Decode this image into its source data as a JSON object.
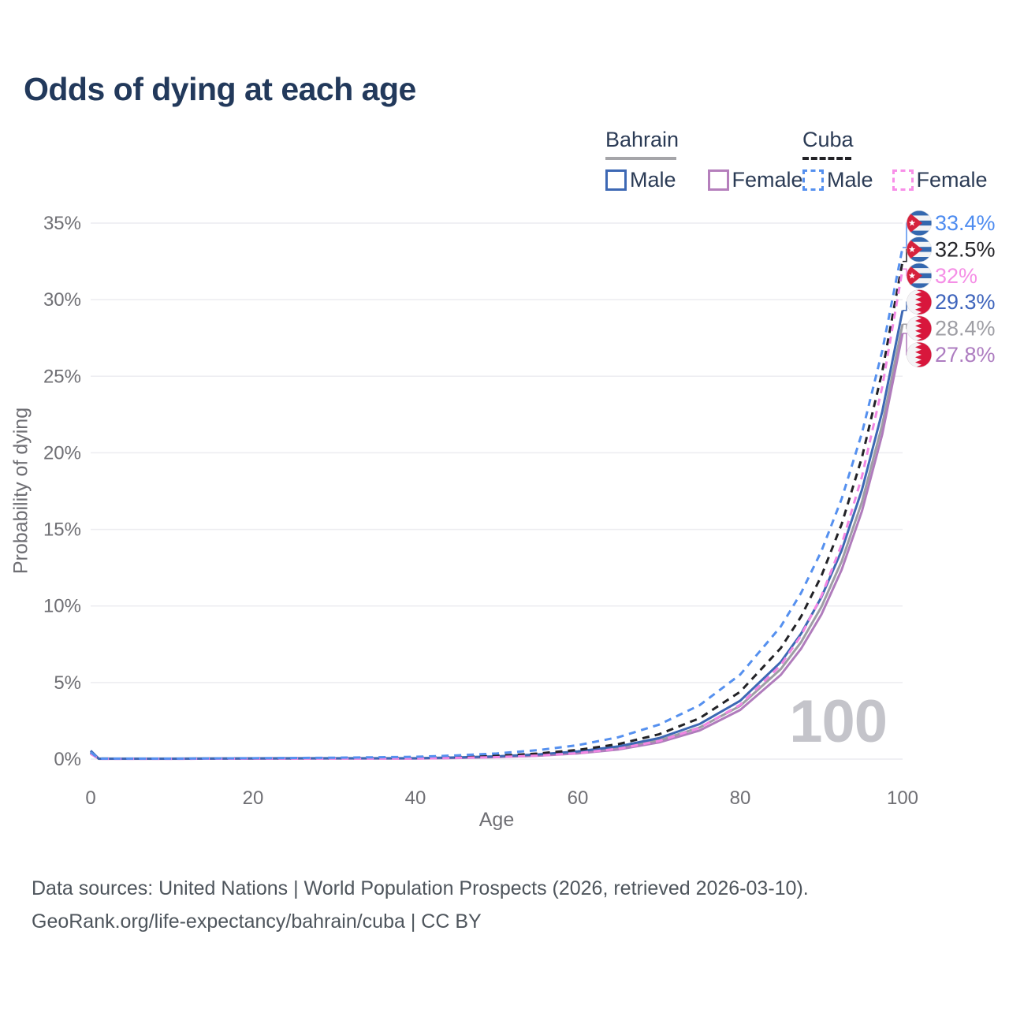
{
  "page": {
    "title": "Odds of dying at each age",
    "background": "#ffffff",
    "title_color": "#22395b"
  },
  "legend": {
    "bahrain": {
      "title": "Bahrain",
      "underline_color": "#a5a5a9",
      "underline_style": "solid",
      "male_label": "Male",
      "male_color": "#3d68b4",
      "female_label": "Female",
      "female_color": "#b57fbc"
    },
    "cuba": {
      "title": "Cuba",
      "underline_color": "#222226",
      "underline_style": "dashed",
      "male_label": "Male",
      "male_color": "#5590ef",
      "female_label": "Female",
      "female_color": "#f88fe8"
    }
  },
  "chart_data": {
    "type": "line",
    "title": "Odds of dying at each age",
    "xlabel": "Age",
    "ylabel": "Probability of dying",
    "xlim": [
      0,
      100
    ],
    "ylim": [
      0,
      35
    ],
    "grid": "horizontal",
    "grid_color": "#ececf0",
    "tick_color": "#6f6f74",
    "watermark": "100",
    "x_ticks": [
      "0",
      "20",
      "40",
      "60",
      "80",
      "100"
    ],
    "x_tick_values": [
      0,
      20,
      40,
      60,
      80,
      100
    ],
    "y_ticks": [
      "0%",
      "5%",
      "10%",
      "15%",
      "20%",
      "25%",
      "30%",
      "35%"
    ],
    "y_tick_values": [
      0,
      5,
      10,
      15,
      20,
      25,
      30,
      35
    ],
    "ages": [
      0,
      1,
      10,
      20,
      30,
      40,
      45,
      50,
      55,
      60,
      65,
      70,
      75,
      80,
      85,
      87.5,
      90,
      92.5,
      95,
      97.5,
      100
    ],
    "series": [
      {
        "id": "bahrain-all",
        "name": "Bahrain",
        "country": "Bahrain",
        "sex": "Both",
        "color": "#9e9ea4",
        "label_color": "#9e9ea4",
        "dashed": false,
        "flag": "bahrain",
        "end_label": "28.4%",
        "values": [
          0.5,
          0.025,
          0.025,
          0.04,
          0.05,
          0.05,
          0.09,
          0.15,
          0.25,
          0.43,
          0.72,
          1.22,
          2.06,
          3.48,
          5.88,
          7.64,
          9.94,
          12.92,
          16.8,
          21.84,
          28.4
        ]
      },
      {
        "id": "bahrain-female",
        "name": "Bahrain Female",
        "country": "Bahrain",
        "sex": "Female",
        "color": "#b07cbc",
        "label_color": "#ad7cc0",
        "dashed": false,
        "flag": "bahrain",
        "end_label": "27.8%",
        "values": [
          0.45,
          0.02,
          0.02,
          0.03,
          0.04,
          0.04,
          0.07,
          0.13,
          0.22,
          0.37,
          0.63,
          1.09,
          1.87,
          3.21,
          5.5,
          7.21,
          9.44,
          12.37,
          16.2,
          21.22,
          27.8
        ]
      },
      {
        "id": "bahrain-male",
        "name": "Bahrain Male",
        "country": "Bahrain",
        "sex": "Male",
        "color": "#3d68b4",
        "label_color": "#3e64bc",
        "dashed": false,
        "flag": "bahrain",
        "end_label": "29.3%",
        "values": [
          0.55,
          0.03,
          0.03,
          0.05,
          0.06,
          0.06,
          0.11,
          0.18,
          0.3,
          0.5,
          0.83,
          1.37,
          2.29,
          3.81,
          6.34,
          8.19,
          10.57,
          13.63,
          17.59,
          22.7,
          29.3
        ]
      },
      {
        "id": "cuba-all",
        "name": "Cuba",
        "country": "Cuba",
        "sex": "Both",
        "color": "#222226",
        "label_color": "#222226",
        "dashed": true,
        "flag": "cuba",
        "end_label": "32.5%",
        "values": [
          0.4,
          0.03,
          0.025,
          0.04,
          0.06,
          0.08,
          0.13,
          0.22,
          0.36,
          0.6,
          0.98,
          1.62,
          2.67,
          4.4,
          7.25,
          9.31,
          11.96,
          15.35,
          19.71,
          25.31,
          32.5
        ]
      },
      {
        "id": "cuba-female",
        "name": "Cuba Female",
        "country": "Cuba",
        "sex": "Female",
        "color": "#f287e3",
        "label_color": "#f58fe6",
        "dashed": true,
        "flag": "cuba",
        "end_label": "32%",
        "values": [
          0.35,
          0.02,
          0.02,
          0.03,
          0.04,
          0.04,
          0.08,
          0.13,
          0.23,
          0.39,
          0.68,
          1.18,
          2.04,
          3.55,
          6.14,
          8.07,
          10.65,
          14.02,
          18.46,
          24.31,
          32.0
        ]
      },
      {
        "id": "cuba-male",
        "name": "Cuba Male",
        "country": "Cuba",
        "sex": "Male",
        "color": "#5590ef",
        "label_color": "#4e8cf0",
        "dashed": true,
        "flag": "cuba",
        "end_label": "33.4%",
        "values": [
          0.45,
          0.03,
          0.03,
          0.06,
          0.09,
          0.15,
          0.24,
          0.37,
          0.58,
          0.91,
          1.43,
          2.25,
          3.52,
          5.52,
          8.66,
          10.85,
          13.58,
          17.0,
          21.3,
          26.67,
          33.4
        ]
      }
    ],
    "flag_colors": {
      "cuba_blue": "#3468af",
      "cuba_white": "#f2f3f5",
      "cuba_red": "#d6223c",
      "bahrain_red": "#d8173c",
      "bahrain_white": "#f4f4f6"
    }
  },
  "footer": {
    "line1": "Data sources: United Nations | World Population Prospects (2026, retrieved 2026-03-10).",
    "line2": "GeoRank.org/life-expectancy/bahrain/cuba | CC BY"
  }
}
